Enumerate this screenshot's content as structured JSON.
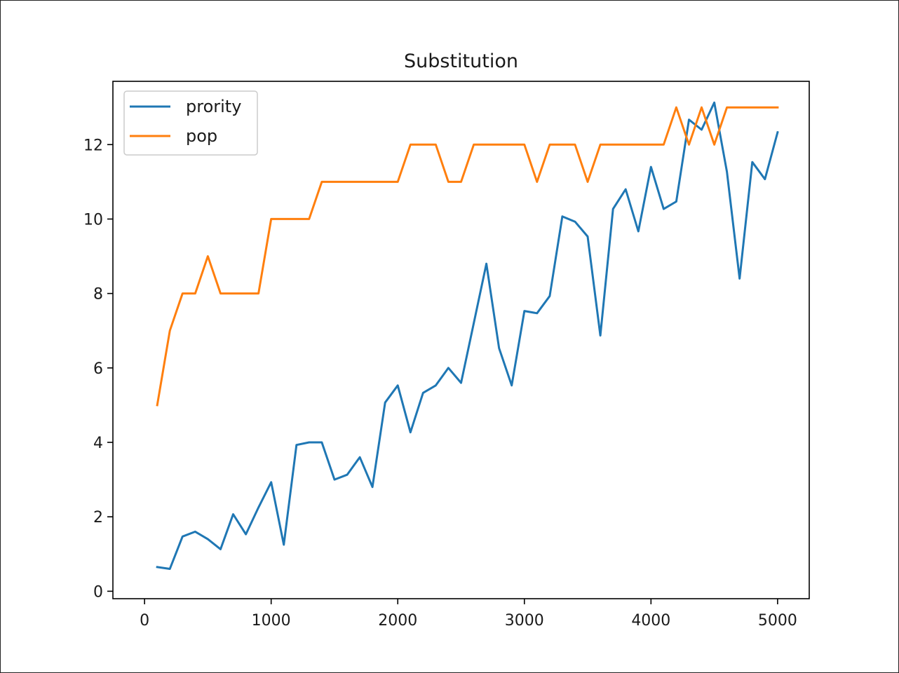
{
  "chart_data": {
    "type": "line",
    "title": "Substitution",
    "xlabel": "",
    "ylabel": "",
    "xlim": [
      -250,
      5250
    ],
    "ylim": [
      -0.2,
      13.7
    ],
    "xticks": [
      0,
      1000,
      2000,
      3000,
      4000,
      5000
    ],
    "xtick_labels": [
      "0",
      "1000",
      "2000",
      "3000",
      "4000",
      "5000"
    ],
    "yticks": [
      0,
      2,
      4,
      6,
      8,
      10,
      12
    ],
    "ytick_labels": [
      "0",
      "2",
      "4",
      "6",
      "8",
      "10",
      "12"
    ],
    "grid": false,
    "legend_position": "top-left",
    "x": [
      100,
      200,
      300,
      400,
      500,
      600,
      700,
      800,
      900,
      1000,
      1100,
      1200,
      1300,
      1400,
      1500,
      1600,
      1700,
      1800,
      1900,
      2000,
      2100,
      2200,
      2300,
      2400,
      2500,
      2600,
      2700,
      2800,
      2900,
      3000,
      3100,
      3200,
      3300,
      3400,
      3500,
      3600,
      3700,
      3800,
      3900,
      4000,
      4100,
      4200,
      4300,
      4400,
      4500,
      4600,
      4700,
      4800,
      4900,
      5000
    ],
    "series": [
      {
        "name": "prority",
        "color": "#1f77b4",
        "values": [
          0.65,
          0.6,
          1.47,
          1.6,
          1.4,
          1.13,
          2.07,
          1.53,
          2.25,
          2.93,
          1.25,
          3.93,
          4.0,
          4.0,
          3.0,
          3.13,
          3.6,
          2.8,
          5.07,
          5.53,
          4.27,
          5.33,
          5.53,
          6.0,
          5.6,
          7.2,
          8.8,
          6.53,
          5.53,
          7.53,
          7.47,
          7.93,
          10.07,
          9.93,
          9.53,
          6.87,
          10.27,
          10.8,
          9.67,
          11.4,
          10.27,
          10.47,
          12.67,
          12.4,
          13.13,
          11.27,
          8.4,
          11.53,
          11.07,
          12.33
        ]
      },
      {
        "name": "pop",
        "color": "#ff7f0e",
        "values": [
          5,
          7,
          8,
          8,
          9,
          8,
          8,
          8,
          8,
          10,
          10,
          10,
          10,
          11,
          11,
          11,
          11,
          11,
          11,
          11,
          12,
          12,
          12,
          11,
          11,
          12,
          12,
          12,
          12,
          12,
          11,
          12,
          12,
          12,
          11,
          12,
          12,
          12,
          12,
          12,
          12,
          13,
          12,
          13,
          12,
          13,
          13,
          13,
          13,
          13
        ]
      }
    ]
  }
}
